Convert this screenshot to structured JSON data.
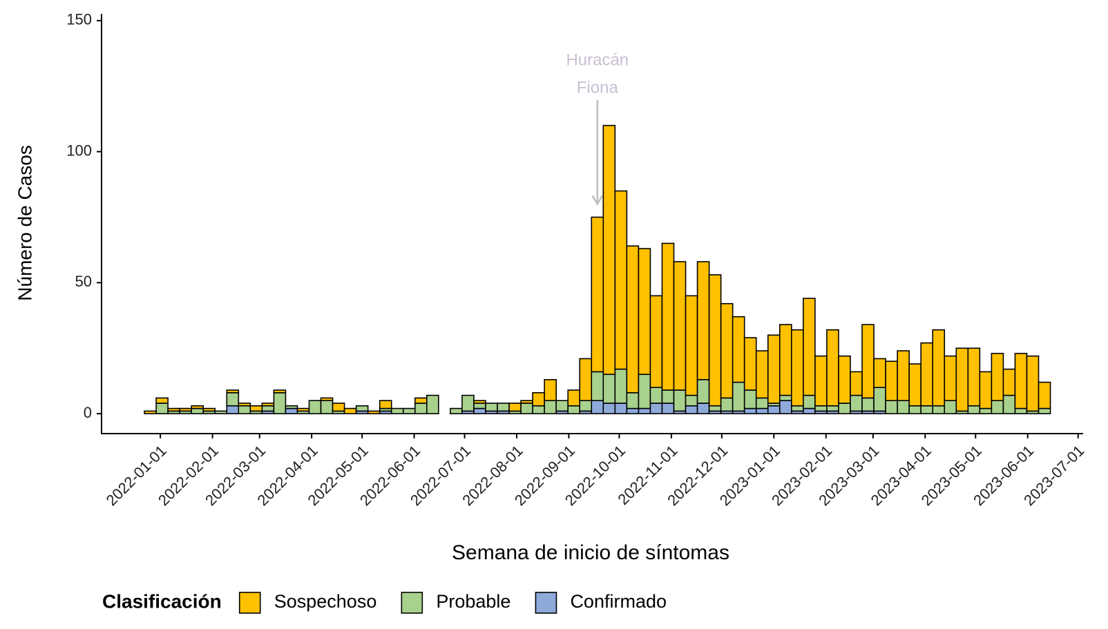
{
  "chart_data": {
    "type": "stacked_bar",
    "x_label": "Semana de inicio de síntomas",
    "y_label": "Número de Casos",
    "legend_title": "Clasificación",
    "x": [
      "2021-12-26",
      "2022-01-02",
      "2022-01-09",
      "2022-01-16",
      "2022-01-23",
      "2022-01-30",
      "2022-02-06",
      "2022-02-13",
      "2022-02-20",
      "2022-02-27",
      "2022-03-06",
      "2022-03-13",
      "2022-03-20",
      "2022-03-27",
      "2022-04-03",
      "2022-04-10",
      "2022-04-17",
      "2022-04-24",
      "2022-05-01",
      "2022-05-08",
      "2022-05-15",
      "2022-05-22",
      "2022-05-29",
      "2022-06-05",
      "2022-06-12",
      "2022-06-19",
      "2022-06-26",
      "2022-07-03",
      "2022-07-10",
      "2022-07-17",
      "2022-07-24",
      "2022-07-31",
      "2022-08-07",
      "2022-08-14",
      "2022-08-21",
      "2022-08-28",
      "2022-09-04",
      "2022-09-11",
      "2022-09-18",
      "2022-09-25",
      "2022-10-02",
      "2022-10-09",
      "2022-10-16",
      "2022-10-23",
      "2022-10-30",
      "2022-11-06",
      "2022-11-13",
      "2022-11-20",
      "2022-11-27",
      "2022-12-04",
      "2022-12-11",
      "2022-12-18",
      "2022-12-25",
      "2023-01-01",
      "2023-01-08",
      "2023-01-15",
      "2023-01-22",
      "2023-01-29",
      "2023-02-05",
      "2023-02-12",
      "2023-02-19",
      "2023-02-26",
      "2023-03-05",
      "2023-03-12",
      "2023-03-19",
      "2023-03-26",
      "2023-04-02",
      "2023-04-09",
      "2023-04-16",
      "2023-04-23",
      "2023-04-30",
      "2023-05-07",
      "2023-05-14",
      "2023-05-21",
      "2023-05-28",
      "2023-06-04",
      "2023-06-11"
    ],
    "series": [
      {
        "name": "Sospechoso",
        "color": "#ffc000",
        "values": [
          1,
          2,
          1,
          1,
          1,
          1,
          0,
          1,
          1,
          2,
          1,
          1,
          0,
          1,
          0,
          1,
          3,
          2,
          0,
          1,
          3,
          0,
          0,
          2,
          0,
          null,
          0,
          0,
          1,
          0,
          0,
          3,
          1,
          5,
          8,
          0,
          6,
          16,
          59,
          95,
          68,
          56,
          48,
          35,
          56,
          49,
          38,
          45,
          50,
          36,
          25,
          20,
          18,
          26,
          27,
          29,
          37,
          19,
          29,
          18,
          9,
          28,
          11,
          15,
          19,
          16,
          24,
          29,
          17,
          24,
          22,
          14,
          18,
          10,
          21,
          21,
          10
        ]
      },
      {
        "name": "Probable",
        "color": "#a9d18e",
        "values": [
          0,
          4,
          1,
          1,
          2,
          1,
          1,
          5,
          3,
          1,
          2,
          8,
          1,
          1,
          5,
          5,
          1,
          0,
          2,
          0,
          1,
          2,
          2,
          4,
          7,
          null,
          2,
          6,
          2,
          3,
          3,
          1,
          4,
          3,
          5,
          4,
          3,
          4,
          11,
          11,
          13,
          6,
          13,
          6,
          5,
          8,
          4,
          9,
          2,
          5,
          11,
          7,
          4,
          1,
          2,
          2,
          5,
          2,
          2,
          4,
          6,
          5,
          9,
          5,
          5,
          3,
          3,
          3,
          5,
          1,
          3,
          2,
          5,
          7,
          2,
          1,
          2
        ]
      },
      {
        "name": "Confirmado",
        "color": "#8eaadb",
        "values": [
          0,
          0,
          0,
          0,
          0,
          0,
          0,
          3,
          0,
          0,
          1,
          0,
          2,
          0,
          0,
          0,
          0,
          0,
          1,
          0,
          1,
          0,
          0,
          0,
          0,
          null,
          0,
          1,
          2,
          1,
          1,
          0,
          0,
          0,
          0,
          1,
          0,
          1,
          5,
          4,
          4,
          2,
          2,
          4,
          4,
          1,
          3,
          4,
          1,
          1,
          1,
          2,
          2,
          3,
          5,
          1,
          2,
          1,
          1,
          0,
          1,
          1,
          1,
          0,
          0,
          0,
          0,
          0,
          0,
          0,
          0,
          0,
          0,
          0,
          0,
          0,
          0
        ]
      }
    ],
    "xlim": [
      "2021-11-27",
      "2023-07-04"
    ],
    "xticks": [
      "2022-01-01",
      "2022-02-01",
      "2022-03-01",
      "2022-04-01",
      "2022-05-01",
      "2022-06-01",
      "2022-07-01",
      "2022-08-01",
      "2022-09-01",
      "2022-10-01",
      "2022-11-01",
      "2022-12-01",
      "2023-01-01",
      "2023-02-01",
      "2023-03-01",
      "2023-04-01",
      "2023-05-01",
      "2023-06-01",
      "2023-07-01"
    ],
    "ylim": [
      -7.6,
      152.6
    ],
    "yticks": [
      0,
      50,
      100,
      150
    ],
    "annotation": {
      "text": [
        "Huracán",
        "Fiona"
      ],
      "x": "2022-09-18",
      "y": 80,
      "color": "#c9bfd3"
    }
  }
}
